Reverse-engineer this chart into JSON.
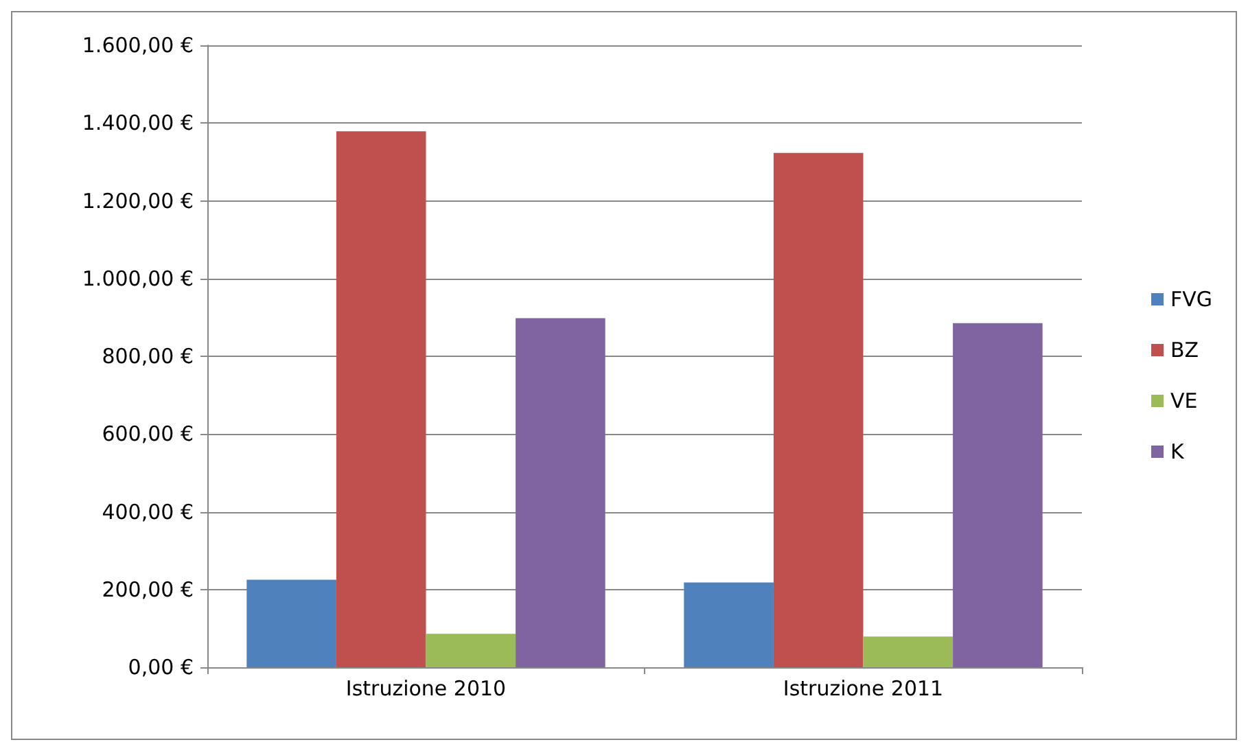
{
  "chart_data": {
    "type": "bar",
    "categories": [
      "Istruzione 2010",
      "Istruzione 2011"
    ],
    "series": [
      {
        "name": "FVG",
        "color": "#4f81bd",
        "values": [
          225,
          218
        ]
      },
      {
        "name": "BZ",
        "color": "#c0504d",
        "values": [
          1379,
          1323
        ]
      },
      {
        "name": "VE",
        "color": "#9bbb59",
        "values": [
          86,
          79
        ]
      },
      {
        "name": "K",
        "color": "#8064a2",
        "values": [
          898,
          885
        ]
      }
    ],
    "ylim": [
      0,
      1600
    ],
    "yticks": [
      {
        "value": 0,
        "label": "0,00 €"
      },
      {
        "value": 200,
        "label": "200,00 €"
      },
      {
        "value": 400,
        "label": "400,00 €"
      },
      {
        "value": 600,
        "label": "600,00 €"
      },
      {
        "value": 800,
        "label": "800,00 €"
      },
      {
        "value": 1000,
        "label": "1.000,00 €"
      },
      {
        "value": 1200,
        "label": "1.200,00 €"
      },
      {
        "value": 1400,
        "label": "1.400,00 €"
      },
      {
        "value": 1600,
        "label": "1.600,00 €"
      }
    ],
    "grid": "y",
    "legend": "right"
  }
}
